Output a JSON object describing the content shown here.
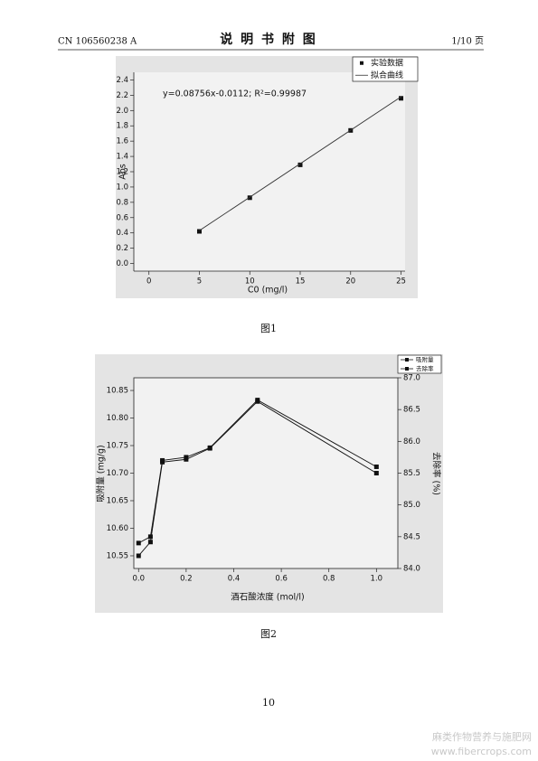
{
  "header": {
    "left": "CN 106560238 A",
    "title": "说 明 书 附 图",
    "right": "1/10 页"
  },
  "chart_data": [
    {
      "type": "scatter",
      "xlabel": "C0 (mg/l)",
      "ylabel": "Abs",
      "annotation": "y=0.08756x-0.0112; R²=0.99987",
      "series": [
        {
          "name": "实验数据",
          "color": "#111111",
          "mode": "markers",
          "x": [
            5,
            10,
            15,
            20,
            25
          ],
          "values": [
            0.42,
            0.86,
            1.29,
            1.74,
            2.16
          ]
        },
        {
          "name": "拟合曲线",
          "color": "#333333",
          "mode": "line",
          "x": [
            5,
            25
          ],
          "values": [
            0.43,
            2.18
          ]
        }
      ],
      "xlim": [
        -1.5,
        25.4
      ],
      "xticks": [
        0,
        5,
        10,
        15,
        20,
        25
      ],
      "ylim": [
        -0.1,
        2.5
      ],
      "yticks": [
        {
          "value": 0,
          "label": "0.0"
        },
        0.2,
        0.4,
        0.6,
        0.8,
        {
          "value": 1,
          "label": "1.0"
        },
        1.2,
        1.4,
        1.6,
        1.8,
        {
          "value": 2,
          "label": "2.0"
        },
        2.2,
        2.4
      ],
      "legend": "upper right",
      "caption": "图1"
    },
    {
      "type": "line",
      "xlabel": "酒石酸浓度 (mol/l)",
      "ylabel": "吸附量 (mg/g)",
      "y2label": "去除率 (%)",
      "x": [
        0,
        0.05,
        0.1,
        0.2,
        0.3,
        0.5,
        1.0
      ],
      "series": [
        {
          "name": "吸附量",
          "color": "#111111",
          "values": [
            10.55,
            10.575,
            10.72,
            10.725,
            10.745,
            10.83,
            10.7
          ]
        },
        {
          "name": "去除率",
          "color": "#111111",
          "axis": "y2",
          "values": [
            84.4,
            84.5,
            85.7,
            85.75,
            85.9,
            86.65,
            85.6
          ]
        }
      ],
      "xlim": [
        -0.02,
        1.09
      ],
      "xticks": [
        {
          "value": 0,
          "label": "0.0"
        },
        0.2,
        0.4,
        0.6,
        0.8,
        {
          "value": 1,
          "label": "1.0"
        }
      ],
      "ylim": [
        10.527,
        10.873
      ],
      "yticks": [
        10.55,
        {
          "value": 10.6,
          "label": "10.60"
        },
        10.65,
        {
          "value": 10.7,
          "label": "10.70"
        },
        10.75,
        {
          "value": 10.8,
          "label": "10.80"
        },
        10.85
      ],
      "y2lim": [
        84.0,
        87.0
      ],
      "y2ticks": [
        {
          "value": 84,
          "label": "84.0"
        },
        84.5,
        {
          "value": 85,
          "label": "85.0"
        },
        85.5,
        {
          "value": 86,
          "label": "86.0"
        },
        86.5,
        {
          "value": 87,
          "label": "87.0"
        }
      ],
      "legend": "upper right",
      "caption": "图2"
    }
  ],
  "page_number": "10",
  "watermark": [
    "麻类作物营养与施肥网",
    "www.fibercrops.com"
  ]
}
